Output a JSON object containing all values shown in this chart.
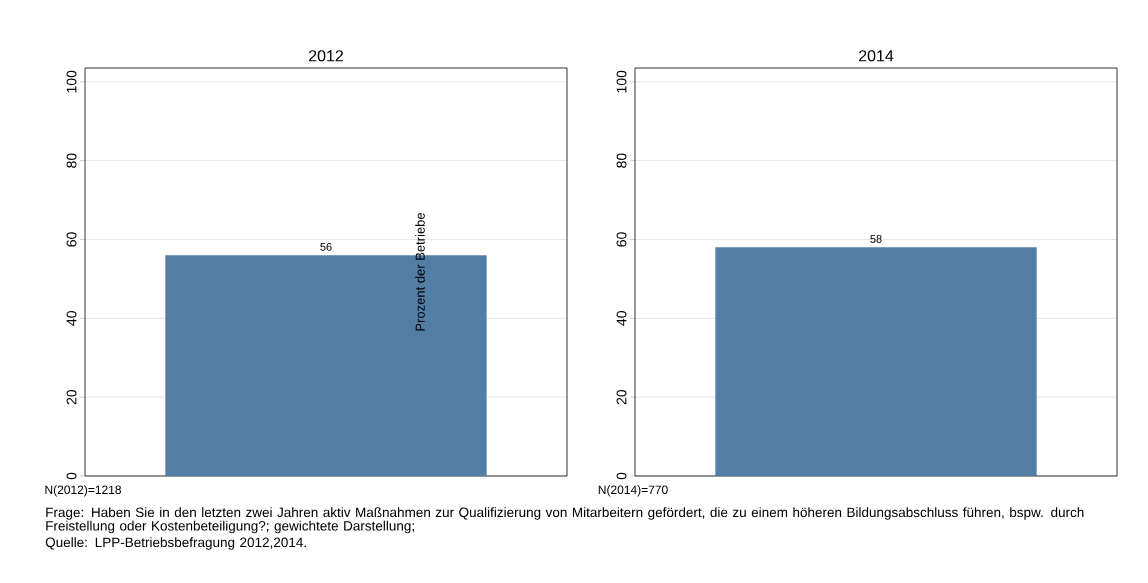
{
  "chart_data": [
    {
      "type": "bar",
      "title": "2012",
      "ylabel": "Prozent der Betriebe",
      "categories": [
        null
      ],
      "values": [
        56
      ],
      "color": "#527ea6",
      "ylim": [
        0,
        103.5
      ],
      "yticks": [
        0,
        20,
        40,
        60,
        80,
        100
      ],
      "grid": "y",
      "data_labels": true,
      "annotations": [
        "N(2012)=1218",
        "Frage: Haben Sie in den letzten zwei Jahren aktiv Maßnahmen zur Qualifizierung von Mitarbeitern gefördert, die zu einem höheren Bildungsabschluss führen, bspw. durch Freistellung oder Kostenbeteiligung?; gewichtete Darstellung;",
        "Quelle: LPP-Betriebsbefragung 2012,2014."
      ]
    },
    {
      "type": "bar",
      "title": "2014",
      "categories": [
        null
      ],
      "values": [
        58
      ],
      "color": "#527ea6",
      "ylim": [
        0,
        103.5
      ],
      "yticks": [
        0,
        20,
        40,
        60,
        80,
        100
      ],
      "grid": "y",
      "data_labels": true,
      "annotations": [
        "N(2014)=770"
      ]
    }
  ]
}
